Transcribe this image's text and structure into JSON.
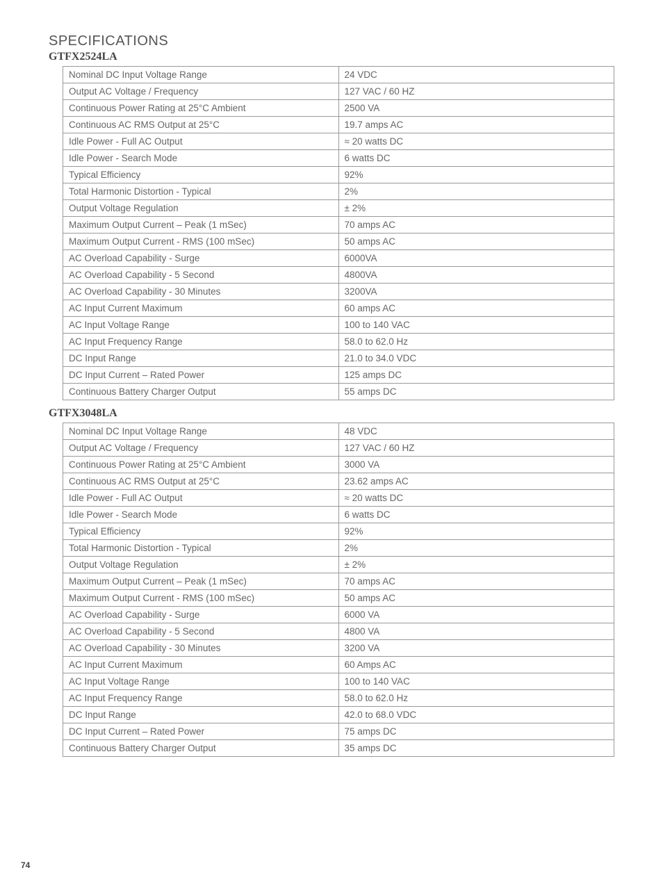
{
  "page_number": "74",
  "section_title": "SPECIFICATIONS",
  "table1": {
    "model": "GTFX2524LA",
    "rows": [
      {
        "label": "Nominal DC Input Voltage Range",
        "value": "24 VDC"
      },
      {
        "label": "Output AC Voltage / Frequency",
        "value": "127 VAC / 60 HZ"
      },
      {
        "label": "Continuous Power Rating at 25°C Ambient",
        "value": "2500 VA"
      },
      {
        "label": "Continuous AC RMS Output at 25°C",
        "value": "19.7 amps AC"
      },
      {
        "label": "Idle Power - Full AC Output",
        "value": "≈ 20 watts DC"
      },
      {
        "label": "Idle Power - Search Mode",
        "value": "6 watts DC"
      },
      {
        "label": "Typical Efficiency",
        "value": "92%"
      },
      {
        "label": "Total Harmonic Distortion - Typical",
        "value": "2%"
      },
      {
        "label": "Output Voltage Regulation",
        "value": "± 2%"
      },
      {
        "label": "Maximum Output Current – Peak (1 mSec)",
        "value": "70 amps AC"
      },
      {
        "label": "Maximum Output Current - RMS (100 mSec)",
        "value": "50 amps AC"
      },
      {
        "label": "AC Overload Capability - Surge",
        "value": "6000VA"
      },
      {
        "label": "AC Overload Capability - 5 Second",
        "value": "4800VA"
      },
      {
        "label": "AC Overload Capability - 30 Minutes",
        "value": "3200VA"
      },
      {
        "label": "AC Input Current Maximum",
        "value": "60 amps AC"
      },
      {
        "label": "AC Input Voltage Range",
        "value": "100 to 140 VAC"
      },
      {
        "label": "AC Input Frequency Range",
        "value": "58.0 to 62.0 Hz"
      },
      {
        "label": "DC Input Range",
        "value": "21.0 to 34.0 VDC"
      },
      {
        "label": "DC Input Current – Rated Power",
        "value": "125 amps DC"
      },
      {
        "label": "Continuous Battery Charger Output",
        "value": "55 amps DC"
      }
    ]
  },
  "table2": {
    "model": "GTFX3048LA",
    "rows": [
      {
        "label": "Nominal DC Input Voltage Range",
        "value": "48 VDC"
      },
      {
        "label": "Output AC Voltage / Frequency",
        "value": "127 VAC / 60 HZ"
      },
      {
        "label": "Continuous Power Rating at 25°C Ambient",
        "value": "3000 VA"
      },
      {
        "label": "Continuous AC RMS Output at 25°C",
        "value": "23.62 amps AC"
      },
      {
        "label": "Idle Power - Full AC Output",
        "value": "≈ 20 watts DC"
      },
      {
        "label": "Idle Power - Search Mode",
        "value": "6 watts DC"
      },
      {
        "label": "Typical Efficiency",
        "value": "92%"
      },
      {
        "label": "Total Harmonic Distortion - Typical",
        "value": "2%"
      },
      {
        "label": "Output Voltage Regulation",
        "value": "± 2%"
      },
      {
        "label": "Maximum Output Current – Peak (1 mSec)",
        "value": "70 amps AC"
      },
      {
        "label": "Maximum Output Current - RMS (100 mSec)",
        "value": "50 amps AC"
      },
      {
        "label": "AC Overload Capability - Surge",
        "value": "6000 VA"
      },
      {
        "label": "AC Overload Capability - 5 Second",
        "value": "4800 VA"
      },
      {
        "label": "AC Overload Capability - 30 Minutes",
        "value": "3200 VA"
      },
      {
        "label": "AC Input Current Maximum",
        "value": "60 Amps AC"
      },
      {
        "label": "AC Input Voltage Range",
        "value": "100 to 140 VAC"
      },
      {
        "label": "AC Input Frequency Range",
        "value": "58.0 to 62.0 Hz"
      },
      {
        "label": "DC Input Range",
        "value": "42.0 to 68.0 VDC"
      },
      {
        "label": "DC Input Current – Rated Power",
        "value": "75 amps DC"
      },
      {
        "label": "Continuous Battery Charger Output",
        "value": "35 amps DC"
      }
    ]
  }
}
